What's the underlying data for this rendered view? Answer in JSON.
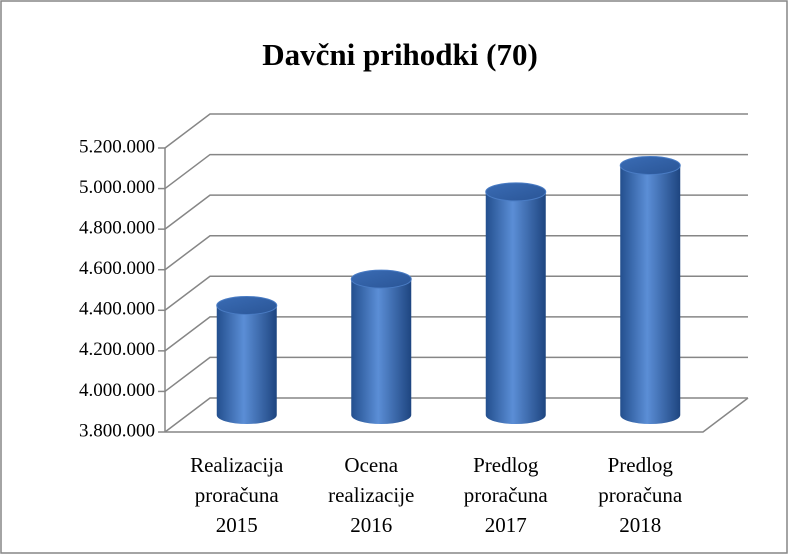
{
  "chart_data": {
    "type": "bar3d",
    "title": "Davčni prihodki (70)",
    "categories": [
      "Realizacija proračuna 2015",
      "Ocena realizacije 2016",
      "Predlog proračuna 2017",
      "Predlog proračuna 2018"
    ],
    "values": [
      4340000,
      4470000,
      4900000,
      5030000
    ],
    "color": "#4f81bd",
    "ylim": [
      3800000,
      5200000
    ],
    "yticks": [
      {
        "value": 3800000,
        "label": "3.800.000"
      },
      {
        "value": 4000000,
        "label": "4.000.000"
      },
      {
        "value": 4200000,
        "label": "4.200.000"
      },
      {
        "value": 4400000,
        "label": "4.400.000"
      },
      {
        "value": 4600000,
        "label": "4.600.000"
      },
      {
        "value": 4800000,
        "label": "4.800.000"
      },
      {
        "value": 5000000,
        "label": "5.000.000"
      },
      {
        "value": 5200000,
        "label": "5.200.000"
      }
    ],
    "grid": true
  }
}
